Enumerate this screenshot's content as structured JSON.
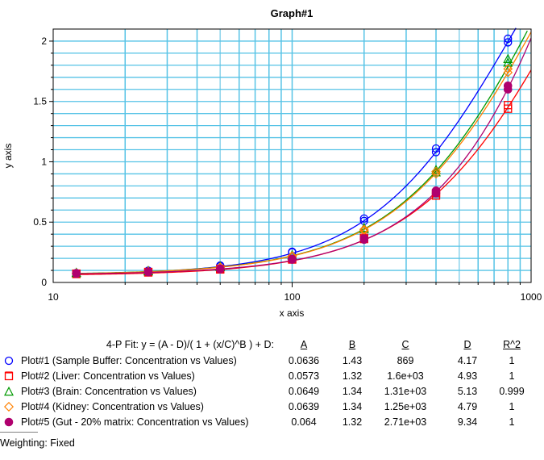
{
  "chart_data": {
    "type": "scatter",
    "title": "Graph#1",
    "xlabel": "x axis",
    "ylabel": "y axis",
    "xscale": "log",
    "xlim": [
      10,
      1000
    ],
    "ylim": [
      0,
      2.1
    ],
    "x_ticks": [
      "10",
      "100",
      "1000"
    ],
    "y_ticks": [
      "0",
      "0.5",
      "1",
      "1.5",
      "2"
    ],
    "grid": true,
    "grid_color": "#56c3e6",
    "series": [
      {
        "name": "Plot#1 (Sample Buffer: Concentration vs Values)",
        "color": "#0000ff",
        "marker": "open-circle",
        "x": [
          12.5,
          12.5,
          25,
          25,
          50,
          50,
          100,
          100,
          200,
          200,
          400,
          400,
          800,
          800
        ],
        "y": [
          0.075,
          0.078,
          0.093,
          0.098,
          0.135,
          0.14,
          0.25,
          0.255,
          0.51,
          0.53,
          1.08,
          1.11,
          1.99,
          2.02
        ],
        "fit": {
          "A": 0.0636,
          "B": 1.43,
          "C": 869,
          "D": 4.17
        }
      },
      {
        "name": "Plot#2 (Liver: Concentration vs Values)",
        "color": "#ff0000",
        "marker": "open-square",
        "x": [
          12.5,
          12.5,
          25,
          25,
          50,
          50,
          100,
          100,
          200,
          200,
          400,
          400,
          800,
          800
        ],
        "y": [
          0.07,
          0.073,
          0.083,
          0.087,
          0.108,
          0.112,
          0.19,
          0.195,
          0.36,
          0.37,
          0.72,
          0.74,
          1.44,
          1.47
        ],
        "fit": {
          "A": 0.0573,
          "B": 1.32,
          "C": 1600,
          "D": 4.93
        }
      },
      {
        "name": "Plot#3 (Brain: Concentration vs Values)",
        "color": "#009900",
        "marker": "open-triangle",
        "x": [
          12.5,
          12.5,
          25,
          25,
          50,
          50,
          100,
          100,
          200,
          200,
          400,
          400,
          800,
          800
        ],
        "y": [
          0.076,
          0.079,
          0.09,
          0.094,
          0.125,
          0.13,
          0.22,
          0.225,
          0.44,
          0.45,
          0.91,
          0.93,
          1.82,
          1.85
        ],
        "fit": {
          "A": 0.0649,
          "B": 1.34,
          "C": 1310,
          "D": 5.13
        }
      },
      {
        "name": "Plot#4 (Kidney: Concentration vs Values)",
        "color": "#ff8000",
        "marker": "open-diamond",
        "x": [
          12.5,
          12.5,
          25,
          25,
          50,
          50,
          100,
          100,
          200,
          200,
          400,
          400,
          800,
          800
        ],
        "y": [
          0.075,
          0.078,
          0.089,
          0.093,
          0.122,
          0.127,
          0.215,
          0.22,
          0.43,
          0.44,
          0.9,
          0.92,
          1.74,
          1.77
        ],
        "fit": {
          "A": 0.0639,
          "B": 1.34,
          "C": 1250,
          "D": 4.79
        }
      },
      {
        "name": "Plot#5 (Gut - 20% matrix: Concentration vs Values)",
        "color": "#b0006e",
        "marker": "filled-circle",
        "x": [
          12.5,
          12.5,
          25,
          25,
          50,
          50,
          100,
          100,
          200,
          200,
          400,
          400,
          800,
          800
        ],
        "y": [
          0.073,
          0.076,
          0.085,
          0.089,
          0.11,
          0.114,
          0.19,
          0.195,
          0.355,
          0.365,
          0.74,
          0.76,
          1.6,
          1.63
        ],
        "fit": {
          "A": 0.064,
          "B": 1.32,
          "C": 2710,
          "D": 9.34
        }
      }
    ]
  },
  "legend": {
    "formula": "4-P Fit: y = (A - D)/( 1 + (x/C)^B ) + D:",
    "headers": {
      "a": "A",
      "b": "B",
      "c": "C",
      "d": "D",
      "r": "R^2"
    },
    "rows": [
      {
        "label": "Plot#1 (Sample Buffer: Concentration vs Values)",
        "a": "0.0636",
        "b": "1.43",
        "c": "869",
        "d": "4.17",
        "r": "1"
      },
      {
        "label": "Plot#2 (Liver: Concentration vs Values)",
        "a": "0.0573",
        "b": "1.32",
        "c": "1.6e+03",
        "d": "4.93",
        "r": "1"
      },
      {
        "label": "Plot#3 (Brain: Concentration vs Values)",
        "a": "0.0649",
        "b": "1.34",
        "c": "1.31e+03",
        "d": "5.13",
        "r": "0.999"
      },
      {
        "label": "Plot#4 (Kidney: Concentration vs Values)",
        "a": "0.0639",
        "b": "1.34",
        "c": "1.25e+03",
        "d": "4.79",
        "r": "1"
      },
      {
        "label": "Plot#5 (Gut - 20% matrix: Concentration vs Values)",
        "a": "0.064",
        "b": "1.32",
        "c": "2.71e+03",
        "d": "9.34",
        "r": "1"
      }
    ]
  },
  "footer": {
    "weighting": "Weighting: Fixed"
  }
}
